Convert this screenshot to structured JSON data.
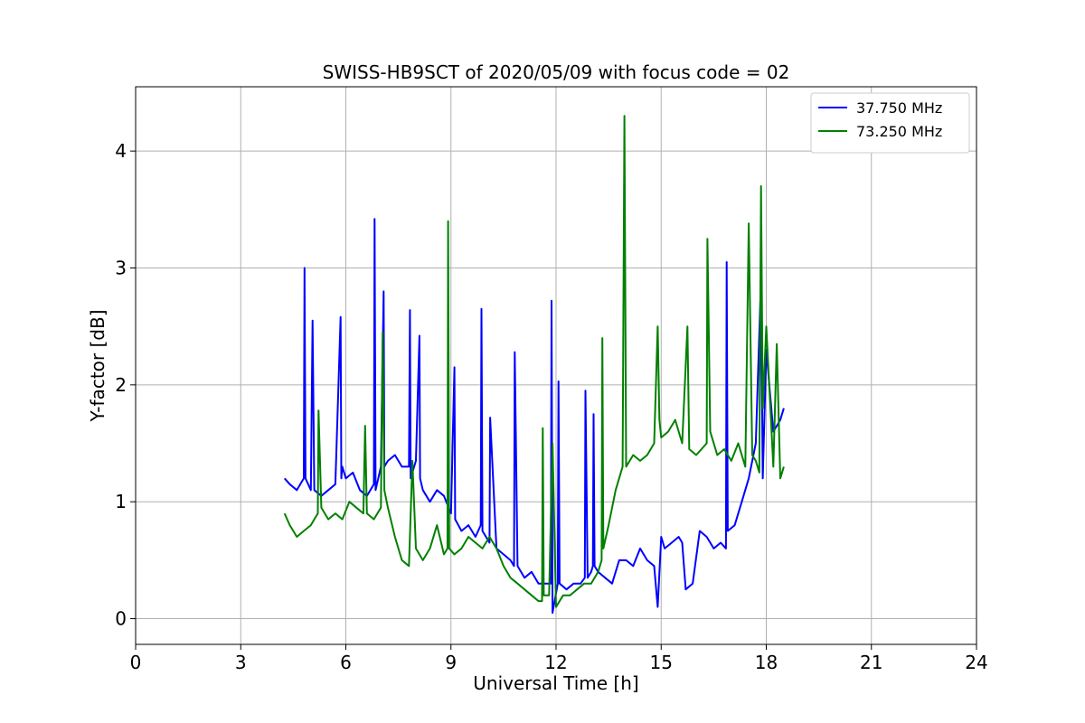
{
  "chart_data": {
    "type": "line",
    "title": "SWISS-HB9SCT of 2020/05/09 with focus code = 02",
    "xlabel": "Universal Time [h]",
    "ylabel": "Y-factor [dB]",
    "xlim": [
      0,
      24
    ],
    "ylim": [
      -0.22,
      4.55
    ],
    "xticks": [
      0,
      3,
      6,
      9,
      12,
      15,
      18,
      21,
      24
    ],
    "yticks": [
      0,
      1,
      2,
      3,
      4
    ],
    "grid": true,
    "legend_position": "top-right",
    "series": [
      {
        "name": "37.750 MHz",
        "color": "#0000ff",
        "x": [
          4.25,
          4.4,
          4.6,
          4.8,
          4.82,
          4.85,
          5.0,
          5.05,
          5.1,
          5.3,
          5.5,
          5.7,
          5.85,
          5.87,
          5.9,
          6.0,
          6.2,
          6.4,
          6.6,
          6.8,
          6.82,
          6.85,
          7.0,
          7.08,
          7.1,
          7.2,
          7.4,
          7.6,
          7.8,
          7.83,
          7.85,
          8.0,
          8.1,
          8.12,
          8.2,
          8.4,
          8.6,
          8.8,
          9.0,
          9.1,
          9.12,
          9.3,
          9.5,
          9.7,
          9.85,
          9.87,
          9.9,
          10.1,
          10.12,
          10.3,
          10.5,
          10.7,
          10.8,
          10.82,
          10.9,
          11.1,
          11.3,
          11.5,
          11.7,
          11.85,
          11.87,
          11.9,
          12.05,
          12.07,
          12.1,
          12.3,
          12.5,
          12.7,
          12.82,
          12.84,
          12.9,
          13.0,
          13.05,
          13.07,
          13.1,
          13.2,
          13.4,
          13.6,
          13.8,
          14.0,
          14.2,
          14.4,
          14.6,
          14.8,
          14.9,
          15.0,
          15.1,
          15.3,
          15.5,
          15.6,
          15.7,
          15.9,
          16.1,
          16.3,
          16.5,
          16.7,
          16.85,
          16.87,
          16.9,
          17.1,
          17.3,
          17.5,
          17.7,
          17.85,
          17.9,
          18.0,
          18.2,
          18.4,
          18.5
        ],
        "y": [
          1.2,
          1.15,
          1.1,
          1.2,
          3.0,
          1.2,
          1.1,
          2.55,
          1.1,
          1.05,
          1.1,
          1.15,
          2.58,
          1.2,
          1.3,
          1.2,
          1.25,
          1.1,
          1.05,
          1.15,
          3.42,
          1.1,
          1.3,
          2.8,
          1.3,
          1.35,
          1.4,
          1.3,
          1.3,
          2.64,
          1.2,
          1.35,
          2.42,
          1.2,
          1.1,
          1.0,
          1.1,
          1.05,
          0.9,
          2.15,
          0.85,
          0.75,
          0.8,
          0.7,
          0.8,
          2.65,
          0.75,
          0.65,
          1.72,
          0.6,
          0.55,
          0.5,
          0.45,
          2.28,
          0.45,
          0.35,
          0.4,
          0.3,
          0.3,
          0.3,
          2.72,
          0.05,
          0.3,
          2.03,
          0.3,
          0.25,
          0.3,
          0.3,
          0.35,
          1.95,
          0.35,
          0.4,
          0.45,
          1.75,
          0.45,
          0.4,
          0.35,
          0.3,
          0.5,
          0.5,
          0.45,
          0.6,
          0.5,
          0.45,
          0.1,
          0.7,
          0.6,
          0.65,
          0.7,
          0.65,
          0.25,
          0.3,
          0.75,
          0.7,
          0.6,
          0.65,
          0.6,
          3.05,
          0.75,
          0.8,
          1.0,
          1.2,
          1.5,
          2.9,
          1.2,
          2.3,
          1.6,
          1.7,
          1.8
        ]
      },
      {
        "name": "73.250 MHz",
        "color": "#008000",
        "x": [
          4.25,
          4.4,
          4.6,
          4.8,
          5.0,
          5.1,
          5.2,
          5.22,
          5.3,
          5.5,
          5.7,
          5.9,
          6.1,
          6.3,
          6.5,
          6.55,
          6.6,
          6.8,
          7.0,
          7.05,
          7.1,
          7.2,
          7.4,
          7.6,
          7.8,
          7.9,
          8.0,
          8.2,
          8.4,
          8.6,
          8.8,
          8.9,
          8.92,
          8.95,
          9.1,
          9.3,
          9.5,
          9.7,
          9.9,
          10.1,
          10.3,
          10.5,
          10.7,
          10.9,
          11.1,
          11.3,
          11.5,
          11.6,
          11.62,
          11.65,
          11.8,
          11.9,
          12.0,
          12.2,
          12.4,
          12.6,
          12.8,
          13.0,
          13.2,
          13.3,
          13.32,
          13.35,
          13.5,
          13.7,
          13.9,
          13.95,
          14.0,
          14.2,
          14.4,
          14.6,
          14.8,
          14.9,
          14.95,
          15.0,
          15.2,
          15.4,
          15.6,
          15.75,
          15.8,
          16.0,
          16.3,
          16.32,
          16.4,
          16.6,
          16.8,
          17.0,
          17.2,
          17.4,
          17.5,
          17.6,
          17.7,
          17.8,
          17.85,
          17.9,
          18.0,
          18.2,
          18.3,
          18.4,
          18.5
        ],
        "y": [
          0.9,
          0.8,
          0.7,
          0.75,
          0.8,
          0.85,
          0.9,
          1.78,
          0.95,
          0.85,
          0.9,
          0.85,
          1.0,
          0.95,
          0.9,
          1.65,
          0.9,
          0.85,
          0.95,
          2.45,
          1.1,
          0.95,
          0.7,
          0.5,
          0.45,
          1.35,
          0.6,
          0.5,
          0.6,
          0.8,
          0.55,
          0.6,
          3.4,
          0.6,
          0.55,
          0.6,
          0.7,
          0.65,
          0.6,
          0.7,
          0.6,
          0.45,
          0.35,
          0.3,
          0.25,
          0.2,
          0.15,
          0.15,
          1.63,
          0.2,
          0.2,
          1.5,
          0.1,
          0.2,
          0.2,
          0.25,
          0.3,
          0.3,
          0.4,
          0.5,
          2.4,
          0.6,
          0.8,
          1.1,
          1.3,
          4.3,
          1.3,
          1.4,
          1.35,
          1.4,
          1.5,
          2.5,
          1.7,
          1.55,
          1.6,
          1.7,
          1.5,
          2.5,
          1.45,
          1.4,
          1.5,
          3.25,
          1.6,
          1.4,
          1.45,
          1.35,
          1.5,
          1.3,
          3.38,
          1.4,
          1.35,
          1.25,
          3.7,
          1.8,
          2.5,
          1.3,
          2.35,
          1.2,
          1.3
        ]
      }
    ]
  }
}
